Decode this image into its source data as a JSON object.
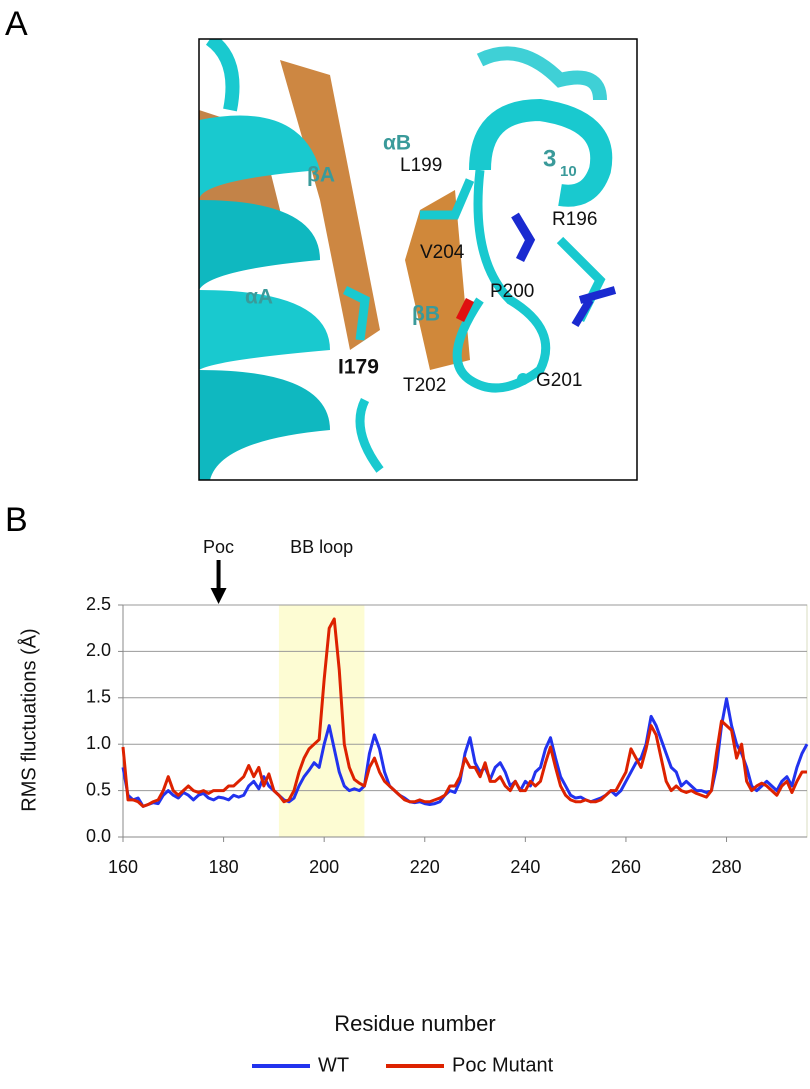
{
  "panel_labels": [
    "A",
    "B"
  ],
  "panel_a": {
    "labels": {
      "alpha_b": "αB",
      "l199": "L199",
      "three10": "3",
      "three10_sub": "10",
      "beta_a": "βA",
      "r196": "R196",
      "v204": "V204",
      "alpha_a": "αA",
      "p200": "P200",
      "beta_b": "βB",
      "i179": "I179",
      "t202": "T202",
      "g201": "G201"
    }
  },
  "chart_data": {
    "type": "line",
    "x_label": "Residue number",
    "y_label": "RMS fluctuations (Å)",
    "xlim": [
      160,
      296
    ],
    "xticks": [
      160,
      180,
      200,
      220,
      240,
      260,
      280
    ],
    "ylim": [
      0,
      2.5
    ],
    "yticks": [
      {
        "value": 0,
        "label": "0.0"
      },
      0.5,
      {
        "value": 1,
        "label": "1.0"
      },
      1.5,
      {
        "value": 2,
        "label": "2.0"
      },
      2.5
    ],
    "grid": true,
    "legend": "bottom",
    "highlight": {
      "label": "BB loop",
      "xlim": [
        191,
        208
      ],
      "color": "#fdfcd3"
    },
    "arrow_annotation": {
      "label": "Poc",
      "x": 179
    },
    "x": [
      160,
      161,
      162,
      163,
      164,
      165,
      166,
      167,
      168,
      169,
      170,
      171,
      172,
      173,
      174,
      175,
      176,
      177,
      178,
      179,
      180,
      181,
      182,
      183,
      184,
      185,
      186,
      187,
      188,
      189,
      190,
      191,
      192,
      193,
      194,
      195,
      196,
      197,
      198,
      199,
      200,
      201,
      202,
      203,
      204,
      205,
      206,
      207,
      208,
      209,
      210,
      211,
      212,
      213,
      214,
      215,
      216,
      217,
      218,
      219,
      220,
      221,
      222,
      223,
      224,
      225,
      226,
      227,
      228,
      229,
      230,
      231,
      232,
      233,
      234,
      235,
      236,
      237,
      238,
      239,
      240,
      241,
      242,
      243,
      244,
      245,
      246,
      247,
      248,
      249,
      250,
      251,
      252,
      253,
      254,
      255,
      256,
      257,
      258,
      259,
      260,
      261,
      262,
      263,
      264,
      265,
      266,
      267,
      268,
      269,
      270,
      271,
      272,
      273,
      274,
      275,
      276,
      277,
      278,
      279,
      280,
      281,
      282,
      283,
      284,
      285,
      286,
      287,
      288,
      289,
      290,
      291,
      292,
      293,
      294,
      295,
      296
    ],
    "series": [
      {
        "name": "WT",
        "color": "#2233ee",
        "values": [
          0.75,
          0.45,
          0.4,
          0.42,
          0.33,
          0.35,
          0.37,
          0.36,
          0.45,
          0.5,
          0.45,
          0.42,
          0.48,
          0.45,
          0.4,
          0.45,
          0.47,
          0.42,
          0.4,
          0.43,
          0.42,
          0.4,
          0.45,
          0.43,
          0.45,
          0.55,
          0.6,
          0.52,
          0.65,
          0.55,
          0.5,
          0.45,
          0.4,
          0.38,
          0.42,
          0.55,
          0.65,
          0.72,
          0.8,
          0.75,
          1.0,
          1.2,
          0.95,
          0.7,
          0.55,
          0.5,
          0.52,
          0.5,
          0.55,
          0.9,
          1.1,
          0.95,
          0.7,
          0.55,
          0.5,
          0.45,
          0.42,
          0.38,
          0.37,
          0.38,
          0.36,
          0.35,
          0.36,
          0.38,
          0.45,
          0.5,
          0.48,
          0.6,
          0.9,
          1.07,
          0.8,
          0.7,
          0.75,
          0.62,
          0.75,
          0.8,
          0.7,
          0.55,
          0.6,
          0.5,
          0.6,
          0.55,
          0.7,
          0.75,
          0.95,
          1.07,
          0.85,
          0.65,
          0.55,
          0.45,
          0.42,
          0.43,
          0.4,
          0.38,
          0.4,
          0.42,
          0.45,
          0.5,
          0.45,
          0.5,
          0.6,
          0.7,
          0.8,
          0.85,
          1.0,
          1.3,
          1.2,
          1.05,
          0.9,
          0.75,
          0.7,
          0.55,
          0.6,
          0.55,
          0.5,
          0.5,
          0.48,
          0.5,
          0.75,
          1.2,
          1.49,
          1.2,
          1.0,
          0.9,
          0.75,
          0.55,
          0.5,
          0.55,
          0.6,
          0.55,
          0.5,
          0.6,
          0.65,
          0.55,
          0.75,
          0.9,
          1.0
        ]
      },
      {
        "name": "Poc Mutant",
        "color": "#dd2200",
        "values": [
          0.97,
          0.4,
          0.4,
          0.38,
          0.33,
          0.35,
          0.38,
          0.4,
          0.5,
          0.65,
          0.5,
          0.45,
          0.5,
          0.55,
          0.5,
          0.48,
          0.5,
          0.47,
          0.5,
          0.5,
          0.5,
          0.55,
          0.55,
          0.6,
          0.65,
          0.77,
          0.65,
          0.75,
          0.55,
          0.68,
          0.5,
          0.45,
          0.38,
          0.4,
          0.5,
          0.7,
          0.85,
          0.95,
          1.0,
          1.05,
          1.7,
          2.25,
          2.35,
          1.8,
          1.0,
          0.75,
          0.62,
          0.58,
          0.55,
          0.75,
          0.85,
          0.7,
          0.6,
          0.55,
          0.5,
          0.45,
          0.4,
          0.38,
          0.38,
          0.4,
          0.38,
          0.38,
          0.4,
          0.42,
          0.45,
          0.55,
          0.55,
          0.65,
          0.85,
          0.75,
          0.75,
          0.65,
          0.8,
          0.6,
          0.6,
          0.65,
          0.55,
          0.5,
          0.6,
          0.5,
          0.5,
          0.6,
          0.55,
          0.6,
          0.8,
          0.97,
          0.75,
          0.55,
          0.45,
          0.4,
          0.38,
          0.38,
          0.4,
          0.38,
          0.38,
          0.4,
          0.45,
          0.5,
          0.5,
          0.6,
          0.7,
          0.95,
          0.85,
          0.75,
          0.95,
          1.2,
          1.1,
          0.85,
          0.6,
          0.5,
          0.55,
          0.5,
          0.48,
          0.5,
          0.47,
          0.45,
          0.43,
          0.5,
          0.9,
          1.25,
          1.2,
          1.15,
          0.85,
          1.0,
          0.6,
          0.5,
          0.55,
          0.58,
          0.55,
          0.5,
          0.45,
          0.55,
          0.6,
          0.48,
          0.6,
          0.7,
          0.7
        ]
      }
    ]
  }
}
